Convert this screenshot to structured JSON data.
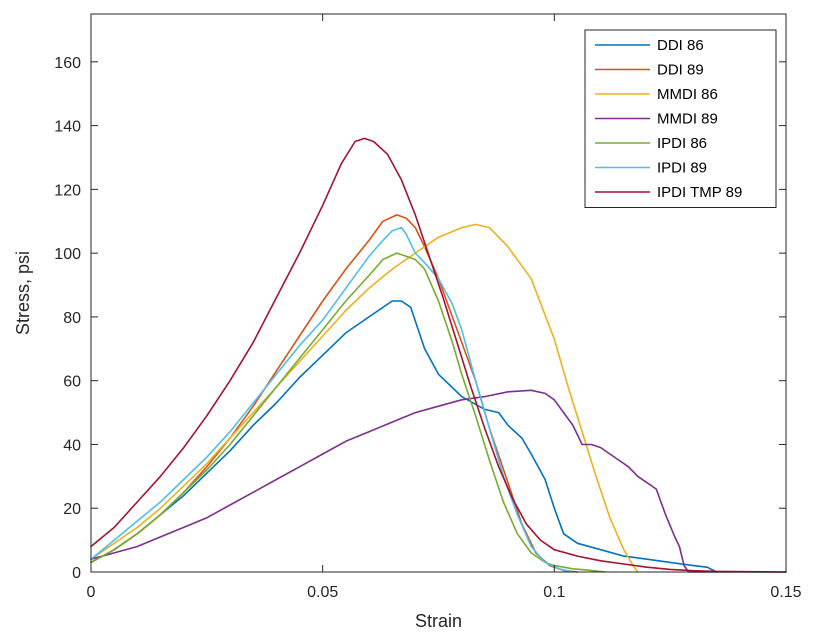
{
  "chart_data": {
    "type": "line",
    "xlabel": "Strain",
    "ylabel": "Stress, psi",
    "xlim": [
      0,
      0.15
    ],
    "ylim": [
      0,
      175
    ],
    "xticks": [
      0,
      0.05,
      0.1,
      0.15
    ],
    "xtick_labels": [
      "0",
      "0.05",
      "0.1",
      "0.15"
    ],
    "yticks": [
      0,
      20,
      40,
      60,
      80,
      100,
      120,
      140,
      160
    ],
    "ytick_labels": [
      "0",
      "20",
      "40",
      "60",
      "80",
      "100",
      "120",
      "140",
      "160"
    ],
    "grid": false,
    "legend_position": "top-right",
    "series": [
      {
        "name": "DDI 86",
        "color": "#0072BD",
        "x": [
          0,
          0.005,
          0.01,
          0.015,
          0.02,
          0.025,
          0.03,
          0.035,
          0.04,
          0.045,
          0.05,
          0.055,
          0.06,
          0.065,
          0.067,
          0.069,
          0.072,
          0.075,
          0.08,
          0.085,
          0.088,
          0.09,
          0.093,
          0.095,
          0.098,
          0.1,
          0.102,
          0.105,
          0.11,
          0.115,
          0.12,
          0.125,
          0.13,
          0.133,
          0.135
        ],
        "y": [
          3,
          7,
          12,
          18,
          24,
          31,
          38,
          46,
          53,
          61,
          68,
          75,
          80,
          85,
          85,
          83,
          70,
          62,
          55,
          51,
          50,
          46,
          42,
          37,
          29,
          20,
          12,
          9,
          7,
          5,
          4,
          3,
          2,
          1.5,
          0
        ]
      },
      {
        "name": "DDI 89",
        "color": "#D95319",
        "x": [
          0,
          0.005,
          0.01,
          0.015,
          0.02,
          0.025,
          0.03,
          0.035,
          0.04,
          0.045,
          0.05,
          0.055,
          0.06,
          0.063,
          0.066,
          0.068,
          0.07,
          0.072,
          0.075,
          0.078,
          0.08,
          0.083,
          0.086,
          0.09,
          0.093,
          0.096,
          0.099,
          0.102,
          0.105
        ],
        "y": [
          3,
          7,
          12,
          18,
          25,
          33,
          42,
          52,
          63,
          74,
          85,
          95,
          104,
          110,
          112,
          111,
          108,
          102,
          92,
          80,
          72,
          60,
          45,
          28,
          15,
          6,
          2,
          0.5,
          0
        ]
      },
      {
        "name": "MMDI 86",
        "color": "#EDB120",
        "x": [
          0,
          0.005,
          0.01,
          0.015,
          0.02,
          0.025,
          0.03,
          0.035,
          0.04,
          0.045,
          0.05,
          0.055,
          0.06,
          0.065,
          0.07,
          0.075,
          0.08,
          0.083,
          0.086,
          0.09,
          0.095,
          0.1,
          0.103,
          0.106,
          0.109,
          0.112,
          0.115,
          0.117,
          0.118
        ],
        "y": [
          4,
          9,
          14,
          20,
          27,
          34,
          42,
          50,
          58,
          66,
          74,
          82,
          89,
          95,
          100,
          105,
          108,
          109,
          108,
          102,
          92,
          73,
          58,
          44,
          30,
          17,
          7,
          2,
          0
        ]
      },
      {
        "name": "MMDI 89",
        "color": "#7E2F8E",
        "x": [
          0,
          0.005,
          0.01,
          0.015,
          0.02,
          0.025,
          0.03,
          0.035,
          0.04,
          0.045,
          0.05,
          0.055,
          0.06,
          0.065,
          0.07,
          0.075,
          0.08,
          0.085,
          0.09,
          0.095,
          0.098,
          0.1,
          0.102,
          0.104,
          0.106,
          0.108,
          0.11,
          0.112,
          0.114,
          0.116,
          0.118,
          0.12,
          0.122,
          0.124,
          0.126,
          0.127,
          0.128,
          0.129,
          0.15
        ],
        "y": [
          4,
          6,
          8,
          11,
          14,
          17,
          21,
          25,
          29,
          33,
          37,
          41,
          44,
          47,
          50,
          52,
          54,
          55,
          56.5,
          57,
          56,
          54,
          50,
          46,
          40,
          40,
          39,
          37,
          35,
          33,
          30,
          28,
          26,
          18,
          11,
          8,
          2,
          0,
          0
        ]
      },
      {
        "name": "IPDI 86",
        "color": "#77AC30",
        "x": [
          0,
          0.005,
          0.01,
          0.015,
          0.02,
          0.025,
          0.03,
          0.035,
          0.04,
          0.045,
          0.05,
          0.055,
          0.06,
          0.063,
          0.066,
          0.068,
          0.07,
          0.072,
          0.075,
          0.078,
          0.08,
          0.083,
          0.086,
          0.089,
          0.092,
          0.095,
          0.098,
          0.1,
          0.104,
          0.108,
          0.111
        ],
        "y": [
          3,
          7,
          12,
          18,
          25,
          32,
          40,
          49,
          58,
          67,
          76,
          85,
          93,
          98,
          100,
          99,
          98,
          95,
          85,
          72,
          62,
          49,
          35,
          22,
          12,
          6,
          3,
          2,
          1,
          0.5,
          0
        ]
      },
      {
        "name": "IPDI 89",
        "color": "#4DBEEE",
        "x": [
          0,
          0.005,
          0.01,
          0.015,
          0.02,
          0.025,
          0.03,
          0.035,
          0.04,
          0.045,
          0.05,
          0.055,
          0.06,
          0.063,
          0.065,
          0.067,
          0.068,
          0.07,
          0.072,
          0.075,
          0.078,
          0.08,
          0.083,
          0.086,
          0.089,
          0.092,
          0.095,
          0.098,
          0.101,
          0.104
        ],
        "y": [
          4,
          10,
          16,
          22,
          29,
          36,
          44,
          53,
          62,
          71,
          79,
          89,
          99,
          104,
          107,
          108,
          106,
          100,
          97,
          92,
          84,
          76,
          60,
          45,
          30,
          18,
          8,
          3,
          1,
          0
        ]
      },
      {
        "name": "IPDI TMP 89",
        "color": "#A2142F",
        "x": [
          0,
          0.005,
          0.01,
          0.015,
          0.02,
          0.025,
          0.03,
          0.035,
          0.04,
          0.045,
          0.05,
          0.054,
          0.057,
          0.059,
          0.061,
          0.064,
          0.067,
          0.07,
          0.073,
          0.076,
          0.079,
          0.082,
          0.085,
          0.088,
          0.091,
          0.094,
          0.097,
          0.1,
          0.105,
          0.11,
          0.115,
          0.12,
          0.125,
          0.13,
          0.135,
          0.15
        ],
        "y": [
          8,
          14,
          22,
          30,
          39,
          49,
          60,
          72,
          86,
          100,
          115,
          128,
          135,
          136,
          135,
          131,
          123,
          112,
          99,
          86,
          72,
          58,
          45,
          33,
          23,
          15,
          10,
          7,
          5,
          3.5,
          2.5,
          1.5,
          0.8,
          0.4,
          0.2,
          0
        ]
      }
    ]
  }
}
